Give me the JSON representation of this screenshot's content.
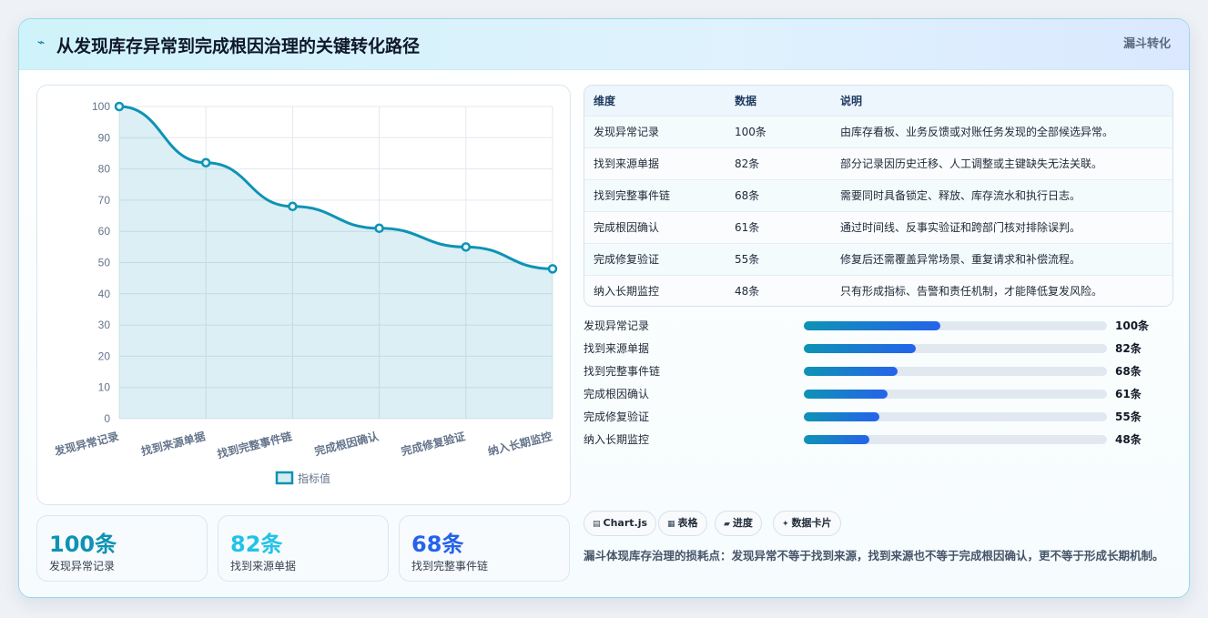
{
  "header": {
    "icon": "bolt-icon",
    "title": "从发现库存异常到完成根因治理的关键转化路径",
    "badge": "漏斗转化"
  },
  "chart_data": {
    "type": "area",
    "categories": [
      "发现异常记录",
      "找到来源单据",
      "找到完整事件链",
      "完成根因确认",
      "完成修复验证",
      "纳入长期监控"
    ],
    "series": [
      {
        "name": "指标值",
        "values": [
          100,
          82,
          68,
          61,
          55,
          48
        ]
      }
    ],
    "ylim": [
      0,
      100
    ],
    "yticks": [
      0,
      10,
      20,
      30,
      40,
      50,
      60,
      70,
      80,
      90,
      100
    ],
    "grid": true,
    "legend": "bottom",
    "color": "#0e93b4"
  },
  "kpis": [
    {
      "value": "100条",
      "label": "发现异常记录",
      "color": "#0e93b4"
    },
    {
      "value": "82条",
      "label": "找到来源单据",
      "color": "#22c3e6"
    },
    {
      "value": "68条",
      "label": "找到完整事件链",
      "color": "#2563eb"
    }
  ],
  "table": {
    "headers": [
      "维度",
      "数据",
      "说明"
    ],
    "rows": [
      [
        "发现异常记录",
        "100条",
        "由库存看板、业务反馈或对账任务发现的全部候选异常。"
      ],
      [
        "找到来源单据",
        "82条",
        "部分记录因历史迁移、人工调整或主键缺失无法关联。"
      ],
      [
        "找到完整事件链",
        "68条",
        "需要同时具备锁定、释放、库存流水和执行日志。"
      ],
      [
        "完成根因确认",
        "61条",
        "通过时间线、反事实验证和跨部门核对排除误判。"
      ],
      [
        "完成修复验证",
        "55条",
        "修复后还需覆盖异常场景、重复请求和补偿流程。"
      ],
      [
        "纳入长期监控",
        "48条",
        "只有形成指标、告警和责任机制，才能降低复发风险。"
      ]
    ]
  },
  "progress": [
    {
      "label": "发现异常记录",
      "value": "100条",
      "fraction": 0.45
    },
    {
      "label": "找到来源单据",
      "value": "82条",
      "fraction": 0.37
    },
    {
      "label": "找到完整事件链",
      "value": "68条",
      "fraction": 0.31
    },
    {
      "label": "完成根因确认",
      "value": "61条",
      "fraction": 0.275
    },
    {
      "label": "完成修复验证",
      "value": "55条",
      "fraction": 0.25
    },
    {
      "label": "纳入长期监控",
      "value": "48条",
      "fraction": 0.215
    }
  ],
  "tags": [
    {
      "icon": "chart-icon",
      "glyph": "▤",
      "label": "Chart.js"
    },
    {
      "icon": "table-icon",
      "glyph": "▦",
      "label": "表格"
    },
    {
      "icon": "progress-icon",
      "glyph": "▰",
      "label": "进度"
    },
    {
      "icon": "sparkle-icon",
      "glyph": "✦",
      "label": "数据卡片"
    }
  ],
  "summary": "漏斗体现库存治理的损耗点：发现异常不等于找到来源，找到来源也不等于完成根因确认，更不等于形成长期机制。"
}
